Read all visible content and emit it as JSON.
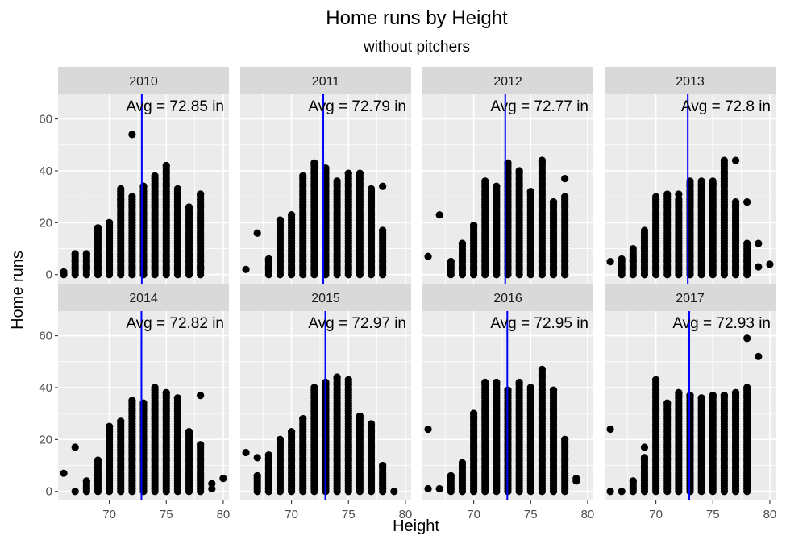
{
  "chart_data": {
    "type": "scatter",
    "title": "Home runs by Height",
    "subtitle": "without pitchers",
    "xlabel": "Height",
    "ylabel": "Home runs",
    "xlim": [
      65.5,
      80.5
    ],
    "ylim": [
      -3.5,
      69.5
    ],
    "x_ticks": [
      70,
      75,
      80
    ],
    "y_ticks": [
      0,
      20,
      40,
      60
    ],
    "grid": true,
    "line_color": "#0000ff",
    "point_color": "#000000",
    "panels": [
      {
        "year": "2010",
        "avg": 72.85,
        "avg_label": "Avg = 72.85 in",
        "columns": [
          [
            66,
            0,
            1
          ],
          [
            67,
            0,
            8
          ],
          [
            68,
            0,
            8
          ],
          [
            69,
            0,
            18
          ],
          [
            70,
            0,
            20
          ],
          [
            71,
            0,
            33
          ],
          [
            72,
            0,
            30
          ],
          [
            73,
            0,
            34
          ],
          [
            74,
            0,
            38
          ],
          [
            75,
            0,
            42
          ],
          [
            76,
            0,
            33
          ],
          [
            77,
            0,
            26
          ],
          [
            78,
            0,
            31
          ]
        ],
        "points": [
          [
            66,
            1
          ],
          [
            67,
            8
          ],
          [
            68,
            8
          ],
          [
            68,
            3
          ],
          [
            69,
            18
          ],
          [
            70,
            20
          ],
          [
            71,
            33
          ],
          [
            71,
            29
          ],
          [
            72,
            54
          ],
          [
            72,
            30
          ],
          [
            73,
            34
          ],
          [
            74,
            38
          ],
          [
            75,
            42
          ],
          [
            76,
            33
          ],
          [
            77,
            26
          ],
          [
            78,
            31
          ],
          [
            78,
            22
          ],
          [
            78,
            3
          ],
          [
            78,
            2
          ]
        ]
      },
      {
        "year": "2011",
        "avg": 72.79,
        "avg_label": "Avg = 72.79 in",
        "columns": [
          [
            68,
            0,
            6
          ],
          [
            69,
            0,
            21
          ],
          [
            70,
            0,
            23
          ],
          [
            71,
            0,
            38
          ],
          [
            72,
            0,
            43
          ],
          [
            73,
            0,
            41
          ],
          [
            74,
            0,
            36
          ],
          [
            75,
            0,
            39
          ],
          [
            76,
            0,
            39
          ],
          [
            77,
            0,
            33
          ],
          [
            78,
            0,
            17
          ]
        ],
        "points": [
          [
            66,
            2
          ],
          [
            67,
            16
          ],
          [
            68,
            6
          ],
          [
            69,
            21
          ],
          [
            70,
            23
          ],
          [
            71,
            38
          ],
          [
            72,
            43
          ],
          [
            73,
            41
          ],
          [
            74,
            36
          ],
          [
            75,
            39
          ],
          [
            76,
            39
          ],
          [
            77,
            33
          ],
          [
            78,
            34
          ],
          [
            78,
            17
          ]
        ]
      },
      {
        "year": "2012",
        "avg": 72.77,
        "avg_label": "Avg = 72.77 in",
        "columns": [
          [
            68,
            0,
            5
          ],
          [
            69,
            0,
            12
          ],
          [
            70,
            0,
            19
          ],
          [
            71,
            0,
            36
          ],
          [
            72,
            0,
            34
          ],
          [
            73,
            0,
            43
          ],
          [
            74,
            0,
            40
          ],
          [
            75,
            0,
            32
          ],
          [
            76,
            0,
            44
          ],
          [
            77,
            0,
            28
          ],
          [
            78,
            0,
            30
          ]
        ],
        "points": [
          [
            66,
            7
          ],
          [
            67,
            23
          ],
          [
            68,
            5
          ],
          [
            69,
            12
          ],
          [
            70,
            19
          ],
          [
            71,
            36
          ],
          [
            72,
            34
          ],
          [
            73,
            43
          ],
          [
            74,
            40
          ],
          [
            75,
            32
          ],
          [
            76,
            44
          ],
          [
            77,
            28
          ],
          [
            78,
            37
          ],
          [
            78,
            30
          ],
          [
            78,
            0
          ]
        ]
      },
      {
        "year": "2013",
        "avg": 72.8,
        "avg_label": "Avg = 72.8 in",
        "columns": [
          [
            67,
            0,
            5
          ],
          [
            68,
            0,
            10
          ],
          [
            69,
            0,
            17
          ],
          [
            70,
            0,
            30
          ],
          [
            71,
            0,
            31
          ],
          [
            72,
            0,
            29
          ],
          [
            73,
            0,
            36
          ],
          [
            74,
            0,
            35
          ],
          [
            75,
            0,
            36
          ],
          [
            76,
            0,
            44
          ],
          [
            77,
            0,
            28
          ],
          [
            78,
            0,
            12
          ]
        ],
        "points": [
          [
            66,
            5
          ],
          [
            67,
            6
          ],
          [
            68,
            5
          ],
          [
            69,
            10
          ],
          [
            70,
            17
          ],
          [
            71,
            30
          ],
          [
            72,
            31
          ],
          [
            73,
            29
          ],
          [
            74,
            36
          ],
          [
            75,
            35
          ],
          [
            76,
            36
          ],
          [
            77,
            44
          ],
          [
            78,
            28
          ],
          [
            79,
            12
          ],
          [
            79,
            3
          ],
          [
            80,
            4
          ]
        ]
      },
      {
        "year": "2014",
        "avg": 72.82,
        "avg_label": "Avg = 72.82 in",
        "columns": [
          [
            68,
            0,
            4
          ],
          [
            69,
            0,
            12
          ],
          [
            70,
            0,
            25
          ],
          [
            71,
            0,
            27
          ],
          [
            72,
            0,
            35
          ],
          [
            73,
            0,
            34
          ],
          [
            74,
            0,
            40
          ],
          [
            75,
            0,
            38
          ],
          [
            76,
            0,
            36
          ],
          [
            77,
            0,
            23
          ],
          [
            78,
            0,
            18
          ]
        ],
        "points": [
          [
            66,
            7
          ],
          [
            67,
            17
          ],
          [
            67,
            0
          ],
          [
            68,
            4
          ],
          [
            69,
            12
          ],
          [
            70,
            25
          ],
          [
            71,
            27
          ],
          [
            72,
            35
          ],
          [
            73,
            34
          ],
          [
            74,
            40
          ],
          [
            75,
            38
          ],
          [
            76,
            36
          ],
          [
            77,
            23
          ],
          [
            78,
            37
          ],
          [
            78,
            18
          ],
          [
            79,
            3
          ],
          [
            79,
            1
          ],
          [
            80,
            5
          ]
        ]
      },
      {
        "year": "2015",
        "avg": 72.97,
        "avg_label": "Avg = 72.97 in",
        "columns": [
          [
            67,
            0,
            6
          ],
          [
            68,
            0,
            14
          ],
          [
            69,
            0,
            20
          ],
          [
            70,
            0,
            23
          ],
          [
            71,
            0,
            28
          ],
          [
            72,
            0,
            40
          ],
          [
            73,
            0,
            42
          ],
          [
            74,
            0,
            44
          ],
          [
            75,
            0,
            43
          ],
          [
            76,
            0,
            29
          ],
          [
            77,
            0,
            26
          ],
          [
            78,
            0,
            10
          ]
        ],
        "points": [
          [
            66,
            15
          ],
          [
            67,
            13
          ],
          [
            67,
            6
          ],
          [
            68,
            14
          ],
          [
            68,
            0
          ],
          [
            69,
            20
          ],
          [
            70,
            23
          ],
          [
            71,
            28
          ],
          [
            72,
            40
          ],
          [
            73,
            42
          ],
          [
            74,
            44
          ],
          [
            75,
            43
          ],
          [
            76,
            29
          ],
          [
            77,
            26
          ],
          [
            78,
            10
          ],
          [
            78,
            3
          ],
          [
            79,
            0
          ]
        ]
      },
      {
        "year": "2016",
        "avg": 72.95,
        "avg_label": "Avg = 72.95 in",
        "columns": [
          [
            68,
            0,
            6
          ],
          [
            69,
            0,
            11
          ],
          [
            70,
            0,
            30
          ],
          [
            71,
            0,
            42
          ],
          [
            72,
            0,
            42
          ],
          [
            73,
            0,
            39
          ],
          [
            74,
            0,
            42
          ],
          [
            75,
            0,
            40
          ],
          [
            76,
            0,
            47
          ],
          [
            77,
            0,
            39
          ],
          [
            78,
            0,
            20
          ]
        ],
        "points": [
          [
            66,
            24
          ],
          [
            66,
            1
          ],
          [
            67,
            1
          ],
          [
            68,
            6
          ],
          [
            69,
            11
          ],
          [
            70,
            30
          ],
          [
            71,
            42
          ],
          [
            72,
            42
          ],
          [
            73,
            39
          ],
          [
            74,
            42
          ],
          [
            75,
            40
          ],
          [
            76,
            47
          ],
          [
            77,
            39
          ],
          [
            78,
            20
          ],
          [
            79,
            5
          ],
          [
            79,
            4
          ]
        ]
      },
      {
        "year": "2017",
        "avg": 72.93,
        "avg_label": "Avg = 72.93 in",
        "columns": [
          [
            68,
            0,
            4
          ],
          [
            69,
            0,
            13
          ],
          [
            70,
            0,
            43
          ],
          [
            71,
            0,
            34
          ],
          [
            72,
            0,
            38
          ],
          [
            73,
            0,
            37
          ],
          [
            74,
            0,
            36
          ],
          [
            75,
            0,
            37
          ],
          [
            76,
            0,
            37
          ],
          [
            77,
            0,
            38
          ],
          [
            78,
            0,
            40
          ]
        ],
        "points": [
          [
            66,
            24
          ],
          [
            66,
            0
          ],
          [
            67,
            0
          ],
          [
            68,
            4
          ],
          [
            69,
            13
          ],
          [
            69,
            17
          ],
          [
            70,
            43
          ],
          [
            71,
            34
          ],
          [
            72,
            38
          ],
          [
            73,
            37
          ],
          [
            74,
            36
          ],
          [
            75,
            37
          ],
          [
            76,
            37
          ],
          [
            77,
            38
          ],
          [
            78,
            40
          ],
          [
            78,
            59
          ],
          [
            79,
            52
          ]
        ]
      }
    ]
  }
}
